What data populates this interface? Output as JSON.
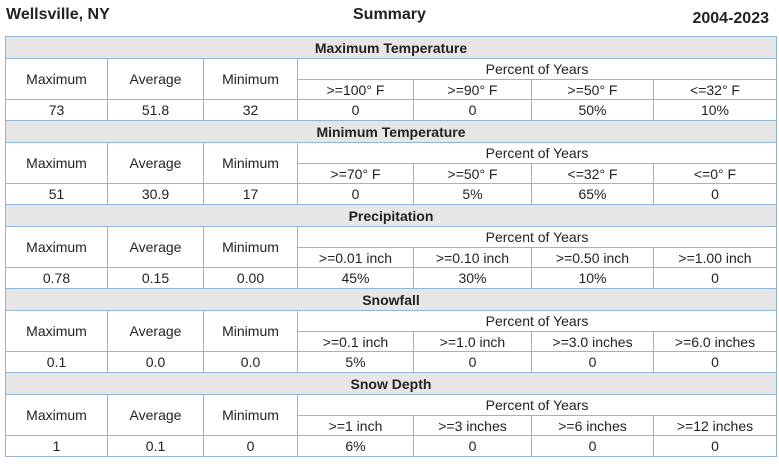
{
  "header": {
    "location": "Wellsville, NY",
    "title": "Summary",
    "years": "2004-2023"
  },
  "sections": [
    {
      "name": "Maximum Temperature",
      "stat_labels": [
        "Maximum",
        "Average",
        "Minimum"
      ],
      "percent_label": "Percent of Years",
      "thresholds": [
        ">=100° F",
        ">=90° F",
        ">=50° F",
        "<=32° F"
      ],
      "values": [
        "73",
        "51.8",
        "32"
      ],
      "percents": [
        "0",
        "0",
        "50%",
        "10%"
      ]
    },
    {
      "name": "Minimum Temperature",
      "stat_labels": [
        "Maximum",
        "Average",
        "Minimum"
      ],
      "percent_label": "Percent of Years",
      "thresholds": [
        ">=70° F",
        ">=50° F",
        "<=32° F",
        "<=0° F"
      ],
      "values": [
        "51",
        "30.9",
        "17"
      ],
      "percents": [
        "0",
        "5%",
        "65%",
        "0"
      ]
    },
    {
      "name": "Precipitation",
      "stat_labels": [
        "Maximum",
        "Average",
        "Minimum"
      ],
      "percent_label": "Percent of Years",
      "thresholds": [
        ">=0.01 inch",
        ">=0.10 inch",
        ">=0.50 inch",
        ">=1.00 inch"
      ],
      "values": [
        "0.78",
        "0.15",
        "0.00"
      ],
      "percents": [
        "45%",
        "30%",
        "10%",
        "0"
      ]
    },
    {
      "name": "Snowfall",
      "stat_labels": [
        "Maximum",
        "Average",
        "Minimum"
      ],
      "percent_label": "Percent of Years",
      "thresholds": [
        ">=0.1 inch",
        ">=1.0 inch",
        ">=3.0 inches",
        ">=6.0 inches"
      ],
      "values": [
        "0.1",
        "0.0",
        "0.0"
      ],
      "percents": [
        "5%",
        "0",
        "0",
        "0"
      ]
    },
    {
      "name": "Snow Depth",
      "stat_labels": [
        "Maximum",
        "Average",
        "Minimum"
      ],
      "percent_label": "Percent of Years",
      "thresholds": [
        ">=1 inch",
        ">=3 inches",
        ">=6 inches",
        ">=12 inches"
      ],
      "values": [
        "1",
        "0.1",
        "0"
      ],
      "percents": [
        "6%",
        "0",
        "0",
        "0"
      ]
    }
  ]
}
